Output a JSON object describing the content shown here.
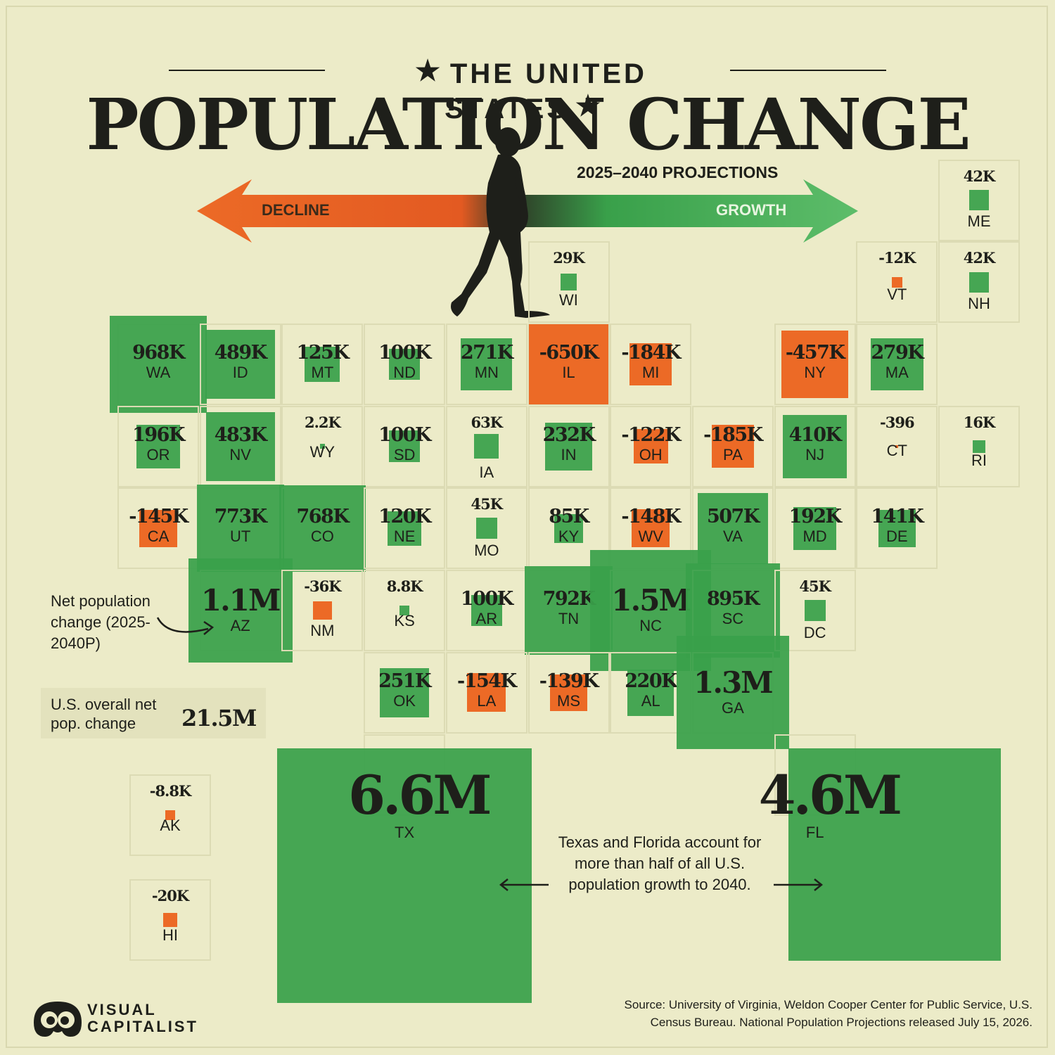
{
  "header": {
    "subtitle": "THE UNITED STATES",
    "title": "POPULATION CHANGE",
    "projections": "2025–2040 PROJECTIONS",
    "decline_label": "DECLINE",
    "growth_label": "GROWTH"
  },
  "colors": {
    "growth": "#39a04a",
    "decline": "#ec6a26",
    "background": "#ecebc8",
    "text": "#1e1f1a"
  },
  "notes": {
    "net_change_label": "Net population change (2025-2040P)",
    "overall_label": "U.S. overall net pop. change",
    "overall_value": "21.5M",
    "tx_fl_note": "Texas and Florida account for more than half of all U.S. population growth to 2040."
  },
  "source": "Source: University of Virginia, Weldon Cooper Center for Public Service, U.S. Census Bureau. National Population Projections released July 15, 2026.",
  "logo": {
    "line1": "VISUAL",
    "line2": "CAPITALIST"
  },
  "states": [
    {
      "abbr": "ME",
      "label": "42K",
      "value": 42000
    },
    {
      "abbr": "WI",
      "label": "29K",
      "value": 29000
    },
    {
      "abbr": "VT",
      "label": "-12K",
      "value": -12000
    },
    {
      "abbr": "NH",
      "label": "42K",
      "value": 42000
    },
    {
      "abbr": "WA",
      "label": "968K",
      "value": 968000
    },
    {
      "abbr": "ID",
      "label": "489K",
      "value": 489000
    },
    {
      "abbr": "MT",
      "label": "125K",
      "value": 125000
    },
    {
      "abbr": "ND",
      "label": "100K",
      "value": 100000
    },
    {
      "abbr": "MN",
      "label": "271K",
      "value": 271000
    },
    {
      "abbr": "IL",
      "label": "-650K",
      "value": -650000
    },
    {
      "abbr": "MI",
      "label": "-184K",
      "value": -184000
    },
    {
      "abbr": "NY",
      "label": "-457K",
      "value": -457000
    },
    {
      "abbr": "MA",
      "label": "279K",
      "value": 279000
    },
    {
      "abbr": "OR",
      "label": "196K",
      "value": 196000
    },
    {
      "abbr": "NV",
      "label": "483K",
      "value": 483000
    },
    {
      "abbr": "WY",
      "label": "2.2K",
      "value": 2200
    },
    {
      "abbr": "SD",
      "label": "100K",
      "value": 100000
    },
    {
      "abbr": "IA",
      "label": "63K",
      "value": 63000
    },
    {
      "abbr": "IN",
      "label": "232K",
      "value": 232000
    },
    {
      "abbr": "OH",
      "label": "-122K",
      "value": -122000
    },
    {
      "abbr": "PA",
      "label": "-185K",
      "value": -185000
    },
    {
      "abbr": "NJ",
      "label": "410K",
      "value": 410000
    },
    {
      "abbr": "CT",
      "label": "-396",
      "value": -396
    },
    {
      "abbr": "RI",
      "label": "16K",
      "value": 16000
    },
    {
      "abbr": "CA",
      "label": "-145K",
      "value": -145000
    },
    {
      "abbr": "UT",
      "label": "773K",
      "value": 773000
    },
    {
      "abbr": "CO",
      "label": "768K",
      "value": 768000
    },
    {
      "abbr": "NE",
      "label": "120K",
      "value": 120000
    },
    {
      "abbr": "MO",
      "label": "45K",
      "value": 45000
    },
    {
      "abbr": "KY",
      "label": "85K",
      "value": 85000
    },
    {
      "abbr": "WV",
      "label": "-148K",
      "value": -148000
    },
    {
      "abbr": "VA",
      "label": "507K",
      "value": 507000
    },
    {
      "abbr": "MD",
      "label": "192K",
      "value": 192000
    },
    {
      "abbr": "DE",
      "label": "141K",
      "value": 141000
    },
    {
      "abbr": "AZ",
      "label": "1.1M",
      "value": 1100000
    },
    {
      "abbr": "NM",
      "label": "-36K",
      "value": -36000
    },
    {
      "abbr": "KS",
      "label": "8.8K",
      "value": 8800
    },
    {
      "abbr": "AR",
      "label": "100K",
      "value": 100000
    },
    {
      "abbr": "TN",
      "label": "792K",
      "value": 792000
    },
    {
      "abbr": "NC",
      "label": "1.5M",
      "value": 1500000
    },
    {
      "abbr": "SC",
      "label": "895K",
      "value": 895000
    },
    {
      "abbr": "DC",
      "label": "45K",
      "value": 45000
    },
    {
      "abbr": "OK",
      "label": "251K",
      "value": 251000
    },
    {
      "abbr": "LA",
      "label": "-154K",
      "value": -154000
    },
    {
      "abbr": "MS",
      "label": "-139K",
      "value": -139000
    },
    {
      "abbr": "AL",
      "label": "220K",
      "value": 220000
    },
    {
      "abbr": "GA",
      "label": "1.3M",
      "value": 1300000
    },
    {
      "abbr": "TX",
      "label": "6.6M",
      "value": 6600000
    },
    {
      "abbr": "FL",
      "label": "4.6M",
      "value": 4600000
    },
    {
      "abbr": "AK",
      "label": "-8.8K",
      "value": -8800
    },
    {
      "abbr": "HI",
      "label": "-20K",
      "value": -20000
    }
  ]
}
